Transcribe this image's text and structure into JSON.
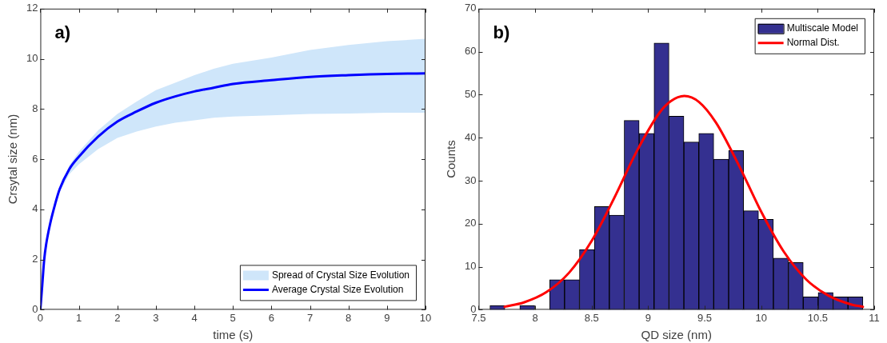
{
  "chart_data": [
    {
      "type": "line",
      "xlabel": "time (s)",
      "ylabel": "Crsytal size (nm)",
      "annotations": [
        "a)"
      ],
      "legend": "bottom right",
      "grid": false,
      "x": [
        0,
        0.05,
        0.1,
        0.15,
        0.25,
        0.4,
        0.5,
        0.75,
        1,
        1.5,
        2,
        2.5,
        3,
        3.5,
        4,
        4.5,
        5,
        6,
        7,
        8,
        9,
        10
      ],
      "xlim": [
        0,
        10
      ],
      "xticks": [
        0,
        1,
        2,
        3,
        4,
        5,
        6,
        7,
        8,
        9,
        10
      ],
      "ylim": [
        0,
        12
      ],
      "yticks": [
        0,
        2,
        4,
        6,
        8,
        10,
        12
      ],
      "series": [
        {
          "name": "Spread of Crystal Size Evolution",
          "type": "area",
          "color": "#cfe6fa",
          "values": [
            null,
            null,
            null,
            null,
            null,
            null,
            null,
            null,
            null,
            null,
            null,
            null,
            null,
            null,
            null,
            null,
            null,
            null,
            null,
            null,
            null,
            null
          ],
          "lower": [
            0,
            1.0,
            2.0,
            2.6,
            3.4,
            4.3,
            4.7,
            5.4,
            5.8,
            6.4,
            6.85,
            7.1,
            7.3,
            7.45,
            7.55,
            7.65,
            7.7,
            7.75,
            7.8,
            7.82,
            7.85,
            7.85
          ],
          "upper": [
            0,
            1.0,
            2.0,
            2.6,
            3.4,
            4.3,
            4.85,
            5.75,
            6.3,
            7.15,
            7.8,
            8.3,
            8.75,
            9.05,
            9.35,
            9.6,
            9.8,
            10.05,
            10.35,
            10.55,
            10.7,
            10.8
          ]
        },
        {
          "name": "Average Crystal Size Evolution",
          "type": "line",
          "color": "#0000ff",
          "values": [
            0,
            1.0,
            2.0,
            2.6,
            3.4,
            4.3,
            4.8,
            5.6,
            6.1,
            6.9,
            7.5,
            7.9,
            8.25,
            8.5,
            8.7,
            8.85,
            9.0,
            9.15,
            9.28,
            9.35,
            9.4,
            9.42
          ]
        }
      ]
    },
    {
      "type": "histogram",
      "xlabel": "QD size (nm)",
      "ylabel": "Counts",
      "annotations": [
        "b)"
      ],
      "legend": "top right",
      "grid": false,
      "bins": [
        7.6,
        7.732,
        7.864,
        7.996,
        8.128,
        8.26,
        8.392,
        8.524,
        8.656,
        8.788,
        8.92,
        9.052,
        9.184,
        9.316,
        9.448,
        9.58,
        9.712,
        9.844,
        9.976,
        10.108,
        10.24,
        10.372,
        10.504,
        10.636,
        10.768,
        10.9
      ],
      "xlim": [
        7.5,
        11
      ],
      "xticks": [
        7.5,
        8,
        8.5,
        9,
        9.5,
        10,
        10.5,
        11
      ],
      "ylim": [
        0,
        70
      ],
      "yticks": [
        0,
        10,
        20,
        30,
        40,
        50,
        60,
        70
      ],
      "series": [
        {
          "name": "Multiscale Model",
          "color": "#343090",
          "values": [
            1,
            0,
            1,
            0,
            7,
            7,
            14,
            24,
            22,
            44,
            41,
            62,
            45,
            39,
            41,
            35,
            37,
            23,
            21,
            12,
            11,
            3,
            4,
            3,
            3
          ]
        },
        {
          "name": "Normal Dist.",
          "type": "line",
          "color": "#ff0000",
          "x": [
            7.73,
            7.9,
            8.1,
            8.3,
            8.5,
            8.7,
            8.9,
            9.1,
            9.2,
            9.32,
            9.45,
            9.6,
            9.8,
            10.0,
            10.2,
            10.4,
            10.6,
            10.8,
            10.9
          ],
          "values": [
            0.7,
            1.7,
            4.1,
            8.6,
            16.0,
            26.0,
            36.9,
            45.8,
            48.5,
            49.7,
            48.3,
            43.5,
            33.7,
            22.8,
            13.5,
            7.0,
            3.2,
            1.2,
            0.7
          ]
        }
      ]
    }
  ]
}
